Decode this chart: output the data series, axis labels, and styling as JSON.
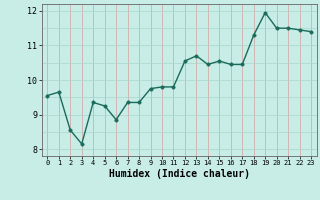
{
  "x": [
    0,
    1,
    2,
    3,
    4,
    5,
    6,
    7,
    8,
    9,
    10,
    11,
    12,
    13,
    14,
    15,
    16,
    17,
    18,
    19,
    20,
    21,
    22,
    23
  ],
  "y": [
    9.55,
    9.65,
    8.55,
    8.15,
    9.35,
    9.25,
    8.85,
    9.35,
    9.35,
    9.75,
    9.8,
    9.8,
    10.55,
    10.7,
    10.45,
    10.55,
    10.45,
    10.45,
    11.3,
    11.95,
    11.5,
    11.5,
    11.45,
    11.4
  ],
  "bg_color": "#c8ece6",
  "grid_color_v": "#d4a0a0",
  "grid_color_h": "#a8d4cc",
  "line_color": "#1a6b5a",
  "marker_color": "#1a6b5a",
  "xlabel": "Humidex (Indice chaleur)",
  "ylim": [
    7.8,
    12.2
  ],
  "xlim": [
    -0.5,
    23.5
  ],
  "yticks": [
    8,
    9,
    10,
    11,
    12
  ],
  "xticks": [
    0,
    1,
    2,
    3,
    4,
    5,
    6,
    7,
    8,
    9,
    10,
    11,
    12,
    13,
    14,
    15,
    16,
    17,
    18,
    19,
    20,
    21,
    22,
    23
  ],
  "xlabel_fontsize": 7,
  "tick_fontsize": 6,
  "line_width": 1.0,
  "marker_size": 2.5
}
